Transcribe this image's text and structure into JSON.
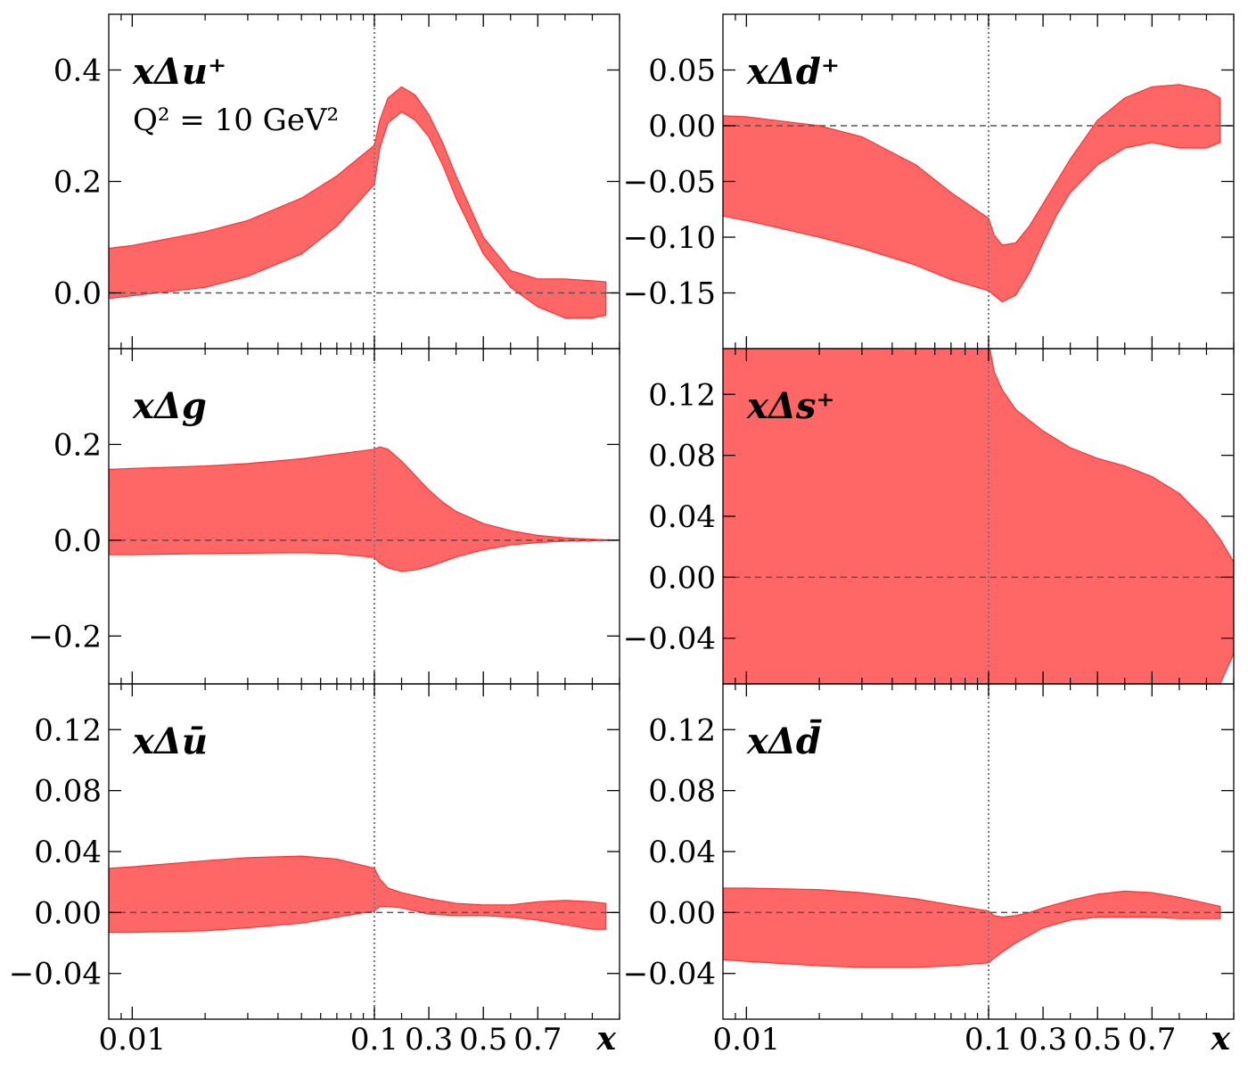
{
  "figure": {
    "band_color": "#ff6666",
    "band_edge_color": "#ff3333",
    "zero_line_color": "#555555",
    "separator_line_color": "#777777",
    "scale_note": "Q² = 10 GeV²"
  },
  "chart_data": [
    {
      "id": "du",
      "type": "area",
      "title": "xΔu⁺",
      "subtitle": "Q² = 10 GeV²",
      "xscale": "log below 0.1, linear above 0.1",
      "xlim": [
        0.008,
        1.0
      ],
      "ylim": [
        -0.1,
        0.5
      ],
      "xticks": [
        {
          "v": 0.01,
          "label": "0.01"
        },
        {
          "v": 0.1,
          "label": "0.1"
        },
        {
          "v": 0.3,
          "label": "0.3"
        },
        {
          "v": 0.5,
          "label": "0.5"
        },
        {
          "v": 0.7,
          "label": "0.7"
        }
      ],
      "show_xtick_labels": false,
      "xlabel": "",
      "yticks": [
        {
          "v": 0.0,
          "label": "0.0"
        },
        {
          "v": 0.2,
          "label": "0.2"
        },
        {
          "v": 0.4,
          "label": "0.4"
        }
      ],
      "x": [
        0.008,
        0.01,
        0.02,
        0.03,
        0.05,
        0.07,
        0.1,
        0.12,
        0.15,
        0.2,
        0.25,
        0.3,
        0.35,
        0.4,
        0.5,
        0.6,
        0.7,
        0.8,
        0.9,
        0.95
      ],
      "upper": [
        0.08,
        0.085,
        0.11,
        0.13,
        0.17,
        0.21,
        0.265,
        0.31,
        0.35,
        0.37,
        0.355,
        0.32,
        0.27,
        0.21,
        0.1,
        0.04,
        0.025,
        0.025,
        0.022,
        0.02
      ],
      "lower": [
        -0.01,
        -0.005,
        0.01,
        0.03,
        0.07,
        0.12,
        0.195,
        0.26,
        0.305,
        0.325,
        0.31,
        0.28,
        0.23,
        0.17,
        0.07,
        0.01,
        -0.025,
        -0.045,
        -0.045,
        -0.04
      ],
      "hlines": [
        0.0
      ]
    },
    {
      "id": "dd",
      "type": "area",
      "title": "xΔd⁺",
      "xscale": "log below 0.1, linear above 0.1",
      "xlim": [
        0.008,
        1.0
      ],
      "ylim": [
        -0.2,
        0.1
      ],
      "xticks": [
        {
          "v": 0.01,
          "label": "0.01"
        },
        {
          "v": 0.1,
          "label": "0.1"
        },
        {
          "v": 0.3,
          "label": "0.3"
        },
        {
          "v": 0.5,
          "label": "0.5"
        },
        {
          "v": 0.7,
          "label": "0.7"
        }
      ],
      "show_xtick_labels": false,
      "xlabel": "",
      "yticks": [
        {
          "v": -0.15,
          "label": "−0.15"
        },
        {
          "v": -0.1,
          "label": "−0.10"
        },
        {
          "v": -0.05,
          "label": "−0.05"
        },
        {
          "v": 0.0,
          "label": "0.00"
        },
        {
          "v": 0.05,
          "label": "0.05"
        }
      ],
      "x": [
        0.008,
        0.01,
        0.02,
        0.03,
        0.05,
        0.07,
        0.1,
        0.12,
        0.15,
        0.2,
        0.25,
        0.3,
        0.35,
        0.4,
        0.5,
        0.6,
        0.7,
        0.8,
        0.9,
        0.95
      ],
      "upper": [
        0.009,
        0.008,
        0.0,
        -0.01,
        -0.035,
        -0.06,
        -0.083,
        -0.098,
        -0.107,
        -0.105,
        -0.09,
        -0.07,
        -0.05,
        -0.03,
        0.005,
        0.025,
        0.035,
        0.037,
        0.032,
        0.025
      ],
      "lower": [
        -0.081,
        -0.085,
        -0.1,
        -0.11,
        -0.125,
        -0.138,
        -0.148,
        -0.152,
        -0.158,
        -0.152,
        -0.132,
        -0.105,
        -0.08,
        -0.06,
        -0.035,
        -0.02,
        -0.015,
        -0.02,
        -0.02,
        -0.015
      ],
      "hlines": [
        0.0
      ]
    },
    {
      "id": "dg",
      "type": "area",
      "title": "xΔg",
      "xscale": "log below 0.1, linear above 0.1",
      "xlim": [
        0.008,
        1.0
      ],
      "ylim": [
        -0.3,
        0.4
      ],
      "xticks": [
        {
          "v": 0.01,
          "label": "0.01"
        },
        {
          "v": 0.1,
          "label": "0.1"
        },
        {
          "v": 0.3,
          "label": "0.3"
        },
        {
          "v": 0.5,
          "label": "0.5"
        },
        {
          "v": 0.7,
          "label": "0.7"
        }
      ],
      "show_xtick_labels": false,
      "xlabel": "",
      "yticks": [
        {
          "v": -0.2,
          "label": "−0.2"
        },
        {
          "v": 0.0,
          "label": "0.0"
        },
        {
          "v": 0.2,
          "label": "0.2"
        }
      ],
      "x": [
        0.008,
        0.01,
        0.02,
        0.03,
        0.05,
        0.07,
        0.1,
        0.12,
        0.15,
        0.2,
        0.25,
        0.3,
        0.35,
        0.4,
        0.5,
        0.6,
        0.7,
        0.8,
        0.9,
        1.0
      ],
      "upper": [
        0.148,
        0.15,
        0.155,
        0.16,
        0.17,
        0.18,
        0.19,
        0.195,
        0.19,
        0.165,
        0.135,
        0.105,
        0.08,
        0.06,
        0.035,
        0.02,
        0.01,
        0.005,
        0.002,
        0.0
      ],
      "lower": [
        -0.03,
        -0.03,
        -0.028,
        -0.027,
        -0.026,
        -0.028,
        -0.036,
        -0.048,
        -0.058,
        -0.065,
        -0.062,
        -0.055,
        -0.045,
        -0.035,
        -0.02,
        -0.01,
        -0.005,
        -0.002,
        -0.001,
        0.0
      ],
      "hlines": [
        0.0
      ]
    },
    {
      "id": "ds",
      "type": "area",
      "title": "xΔs⁺",
      "xscale": "log below 0.1, linear above 0.1",
      "xlim": [
        0.008,
        1.0
      ],
      "ylim": [
        -0.07,
        0.15
      ],
      "xticks": [
        {
          "v": 0.01,
          "label": "0.01"
        },
        {
          "v": 0.1,
          "label": "0.1"
        },
        {
          "v": 0.3,
          "label": "0.3"
        },
        {
          "v": 0.5,
          "label": "0.5"
        },
        {
          "v": 0.7,
          "label": "0.7"
        }
      ],
      "show_xtick_labels": false,
      "xlabel": "",
      "yticks": [
        {
          "v": -0.04,
          "label": "−0.04"
        },
        {
          "v": 0.0,
          "label": "0.00"
        },
        {
          "v": 0.04,
          "label": "0.04"
        },
        {
          "v": 0.08,
          "label": "0.08"
        },
        {
          "v": 0.12,
          "label": "0.12"
        }
      ],
      "x": [
        0.008,
        0.01,
        0.02,
        0.05,
        0.1,
        0.105,
        0.12,
        0.15,
        0.2,
        0.3,
        0.4,
        0.5,
        0.6,
        0.7,
        0.8,
        0.9,
        0.95,
        1.0
      ],
      "upper": [
        0.2,
        0.2,
        0.2,
        0.2,
        0.2,
        0.15,
        0.135,
        0.123,
        0.11,
        0.096,
        0.085,
        0.078,
        0.073,
        0.066,
        0.055,
        0.037,
        0.025,
        0.01
      ],
      "lower": [
        -0.2,
        -0.2,
        -0.2,
        -0.2,
        -0.2,
        -0.2,
        -0.2,
        -0.2,
        -0.2,
        -0.2,
        -0.2,
        -0.2,
        -0.2,
        -0.2,
        -0.12,
        -0.085,
        -0.07,
        -0.05
      ],
      "hlines": [
        0.0
      ]
    },
    {
      "id": "dubar",
      "type": "area",
      "title": "xΔū",
      "xscale": "log below 0.1, linear above 0.1",
      "xlim": [
        0.008,
        1.0
      ],
      "ylim": [
        -0.07,
        0.15
      ],
      "xticks": [
        {
          "v": 0.01,
          "label": "0.01"
        },
        {
          "v": 0.1,
          "label": "0.1"
        },
        {
          "v": 0.3,
          "label": "0.3"
        },
        {
          "v": 0.5,
          "label": "0.5"
        },
        {
          "v": 0.7,
          "label": "0.7"
        }
      ],
      "show_xtick_labels": true,
      "xlabel": "x",
      "yticks": [
        {
          "v": -0.04,
          "label": "−0.04"
        },
        {
          "v": 0.0,
          "label": "0.00"
        },
        {
          "v": 0.04,
          "label": "0.04"
        },
        {
          "v": 0.08,
          "label": "0.08"
        },
        {
          "v": 0.12,
          "label": "0.12"
        }
      ],
      "x": [
        0.008,
        0.01,
        0.02,
        0.03,
        0.05,
        0.07,
        0.1,
        0.12,
        0.15,
        0.2,
        0.25,
        0.3,
        0.4,
        0.5,
        0.6,
        0.7,
        0.8,
        0.9,
        0.95
      ],
      "upper": [
        0.029,
        0.03,
        0.034,
        0.036,
        0.037,
        0.035,
        0.029,
        0.022,
        0.016,
        0.013,
        0.011,
        0.009,
        0.006,
        0.005,
        0.005,
        0.007,
        0.008,
        0.007,
        0.006
      ],
      "lower": [
        -0.013,
        -0.013,
        -0.012,
        -0.01,
        -0.007,
        -0.003,
        0.001,
        0.004,
        0.004,
        0.003,
        0.001,
        -0.001,
        -0.002,
        -0.002,
        -0.003,
        -0.005,
        -0.008,
        -0.011,
        -0.011
      ],
      "hlines": [
        0.0
      ]
    },
    {
      "id": "ddbar",
      "type": "area",
      "title": "xΔd̄",
      "xscale": "log below 0.1, linear above 0.1",
      "xlim": [
        0.008,
        1.0
      ],
      "ylim": [
        -0.07,
        0.15
      ],
      "xticks": [
        {
          "v": 0.01,
          "label": "0.01"
        },
        {
          "v": 0.1,
          "label": "0.1"
        },
        {
          "v": 0.3,
          "label": "0.3"
        },
        {
          "v": 0.5,
          "label": "0.5"
        },
        {
          "v": 0.7,
          "label": "0.7"
        }
      ],
      "show_xtick_labels": true,
      "xlabel": "x",
      "yticks": [
        {
          "v": -0.04,
          "label": "−0.04"
        },
        {
          "v": 0.0,
          "label": "0.00"
        },
        {
          "v": 0.04,
          "label": "0.04"
        },
        {
          "v": 0.08,
          "label": "0.08"
        },
        {
          "v": 0.12,
          "label": "0.12"
        }
      ],
      "x": [
        0.008,
        0.01,
        0.02,
        0.03,
        0.05,
        0.07,
        0.1,
        0.12,
        0.15,
        0.2,
        0.25,
        0.3,
        0.4,
        0.5,
        0.6,
        0.7,
        0.8,
        0.9,
        0.95
      ],
      "upper": [
        0.016,
        0.016,
        0.015,
        0.013,
        0.009,
        0.005,
        0.001,
        -0.002,
        -0.003,
        -0.002,
        0.0,
        0.003,
        0.008,
        0.012,
        0.014,
        0.013,
        0.01,
        0.006,
        0.004
      ],
      "lower": [
        -0.031,
        -0.032,
        -0.035,
        -0.036,
        -0.036,
        -0.035,
        -0.033,
        -0.03,
        -0.026,
        -0.02,
        -0.015,
        -0.01,
        -0.005,
        -0.003,
        -0.003,
        -0.003,
        -0.004,
        -0.004,
        -0.004
      ],
      "hlines": [
        0.0
      ]
    }
  ]
}
